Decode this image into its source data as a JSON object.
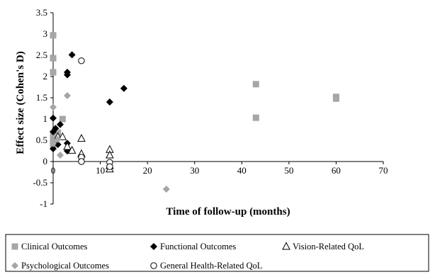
{
  "chart_data": {
    "type": "scatter",
    "title": "",
    "xlabel": "Time of follow-up (months)",
    "ylabel": "Effect size (Cohen's D)",
    "xlim": [
      0,
      70
    ],
    "ylim": [
      -1,
      3.5
    ],
    "x_ticks": [
      "0",
      "10",
      "20",
      "30",
      "40",
      "50",
      "60",
      "70"
    ],
    "y_ticks": [
      "-1",
      "-0.5",
      "0",
      "0.5",
      "1",
      "1.5",
      "2",
      "2.5",
      "3",
      "3.5"
    ],
    "grid": false,
    "legend_position": "bottom",
    "series": [
      {
        "name": "Clinical Outcomes",
        "marker": "square",
        "color": "#a6a6a6",
        "points": [
          [
            0,
            2.97
          ],
          [
            0,
            2.43
          ],
          [
            0,
            2.1
          ],
          [
            0,
            0.6
          ],
          [
            0,
            0.55
          ],
          [
            0,
            0.5
          ],
          [
            0,
            0.4
          ],
          [
            1,
            0.68
          ],
          [
            2,
            1.0
          ],
          [
            43,
            1.82
          ],
          [
            43,
            1.03
          ],
          [
            60,
            1.52
          ],
          [
            60,
            1.48
          ]
        ]
      },
      {
        "name": "Functional Outcomes",
        "marker": "diamond",
        "color": "#000000",
        "points": [
          [
            0,
            1.02
          ],
          [
            0,
            0.7
          ],
          [
            0,
            0.3
          ],
          [
            0.5,
            0.78
          ],
          [
            1,
            0.4
          ],
          [
            1.5,
            0.87
          ],
          [
            3,
            2.1
          ],
          [
            3,
            2.04
          ],
          [
            3,
            0.43
          ],
          [
            3,
            0.25
          ],
          [
            4,
            2.51
          ],
          [
            12,
            1.4
          ],
          [
            15,
            1.72
          ]
        ]
      },
      {
        "name": "Vision-Related QoL",
        "marker": "triangle-open",
        "color": "#000000",
        "points": [
          [
            1,
            0.58
          ],
          [
            2,
            0.58
          ],
          [
            3,
            0.35
          ],
          [
            4,
            0.26
          ],
          [
            6,
            0.54
          ],
          [
            6,
            0.18
          ],
          [
            12,
            0.28
          ],
          [
            12,
            0.15
          ],
          [
            12,
            -0.1
          ],
          [
            12,
            -0.18
          ]
        ]
      },
      {
        "name": "Psychological Outcomes",
        "marker": "diamond",
        "color": "#a6a6a6",
        "points": [
          [
            0,
            1.28
          ],
          [
            0,
            0.48
          ],
          [
            0,
            0.42
          ],
          [
            1,
            0.52
          ],
          [
            1.5,
            0.15
          ],
          [
            3,
            1.55
          ],
          [
            6,
            0.08
          ],
          [
            24,
            -0.65
          ]
        ]
      },
      {
        "name": "General Health-Related QoL",
        "marker": "circle-open",
        "color": "#000000",
        "points": [
          [
            6,
            2.37
          ],
          [
            6,
            0.1
          ],
          [
            6,
            0.0
          ],
          [
            12,
            -0.02
          ],
          [
            12,
            -0.12
          ]
        ]
      }
    ]
  }
}
